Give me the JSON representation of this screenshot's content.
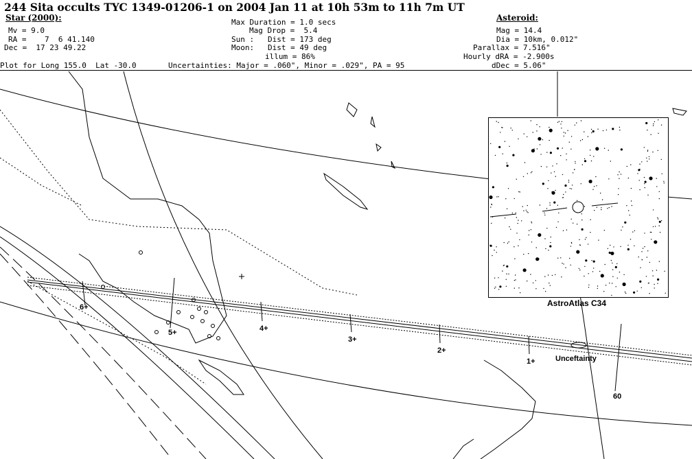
{
  "title": "244 Sita occults TYC 1349-01206-1 on 2004 Jan 11 at 10h 53m to 11h 7m UT",
  "star": {
    "heading": "Star (2000):",
    "mv": "Mv = 9.0",
    "ra": "RA =    7  6 41.140",
    "dec": "Dec =  17 23 49.22"
  },
  "event": {
    "max_duration": "Max Duration = 1.0 secs",
    "mag_drop": "Mag Drop =  5.4",
    "sun": "Sun :   Dist = 173 deg",
    "moon": "Moon:   Dist = 49 deg",
    "illum": "illum = 86%"
  },
  "asteroid": {
    "heading": "Asteroid:",
    "mag": "Mag = 14.4",
    "dia": "Dia = 10km, 0.012\"",
    "parallax": "Parallax = 7.516\"",
    "hourly_dra": "Hourly dRA = -2.900s",
    "ddec": "dDec = 5.06\""
  },
  "plot_for": "Plot for Long 155.0  Lat -30.0",
  "uncertainties": "Uncertainties: Major = .060\", Minor = .029\", PA = 95",
  "map": {
    "time_marks": [
      "6+",
      "5+",
      "4+",
      "3+",
      "2+",
      "1+"
    ],
    "uncertainty_label": "Unceftainty",
    "sixty_label": "60",
    "star_chart_label": "AstroAtlas C34"
  },
  "colors": {
    "ink": "#000000",
    "background": "#ffffff"
  }
}
